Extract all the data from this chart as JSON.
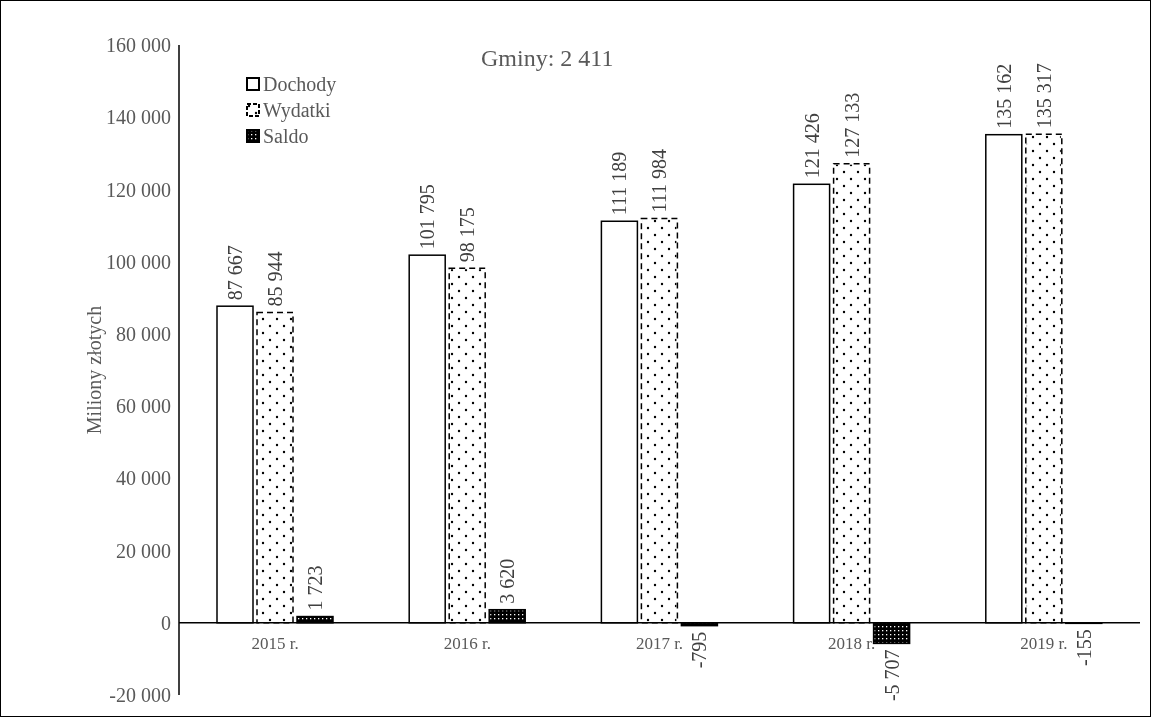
{
  "chart_data": {
    "type": "bar",
    "title": "Gminy: 2 411",
    "ylabel": "Miliony złotych",
    "categories": [
      "2015 r.",
      "2016 r.",
      "2017 r.",
      "2018 r.",
      "2019 r."
    ],
    "series": [
      {
        "name": "Dochody",
        "color": "#ffffff",
        "values": [
          87667,
          101795,
          111189,
          121426,
          135162
        ],
        "value_labels": [
          "87 667",
          "101 795",
          "111 189",
          "121 426",
          "135 162"
        ]
      },
      {
        "name": "Wydatki",
        "color": "#ffffff",
        "line_style": "dashed",
        "values": [
          85944,
          98175,
          111984,
          127133,
          135317
        ],
        "value_labels": [
          "85 944",
          "98 175",
          "111 984",
          "127 133",
          "135 317"
        ]
      },
      {
        "name": "Saldo",
        "color": "#000000",
        "values": [
          1723,
          3620,
          -795,
          -5707,
          -155
        ],
        "value_labels": [
          "1 723",
          "3 620",
          "-795",
          "-5 707",
          "-155"
        ]
      }
    ],
    "ylim": [
      -20000,
      160000
    ],
    "yticks": [
      {
        "value": -20000,
        "label": "-20 000"
      },
      {
        "value": 0,
        "label": "0"
      },
      {
        "value": 20000,
        "label": "20 000"
      },
      {
        "value": 40000,
        "label": "40 000"
      },
      {
        "value": 60000,
        "label": "60 000"
      },
      {
        "value": 80000,
        "label": "80 000"
      },
      {
        "value": 100000,
        "label": "100 000"
      },
      {
        "value": 120000,
        "label": "120 000"
      },
      {
        "value": 140000,
        "label": "140 000"
      },
      {
        "value": 160000,
        "label": "160 000"
      }
    ],
    "grid": false,
    "legend": "top left"
  }
}
